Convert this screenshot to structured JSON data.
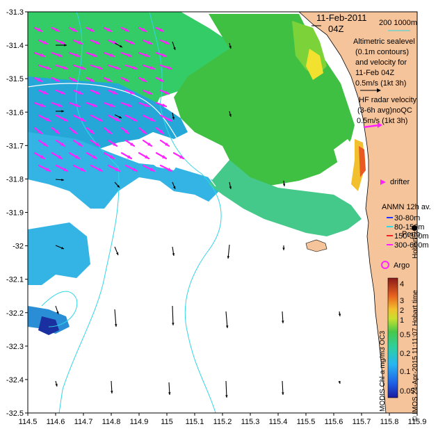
{
  "map": {
    "lon_ticks": [
      "114.5",
      "114.6",
      "114.7",
      "114.8",
      "114.9",
      "115",
      "115.1",
      "115.2",
      "115.3",
      "115.4",
      "115.5",
      "115.6",
      "115.7",
      "115.8",
      "115.9"
    ],
    "lat_ticks": [
      "-31.3",
      "-31.4",
      "-31.5",
      "-31.6",
      "-31.7",
      "-31.8",
      "-31.9",
      "-32",
      "-32.1",
      "-32.2",
      "-32.3",
      "-32.4",
      "-32.5"
    ],
    "lon_range": [
      114.5,
      115.9
    ],
    "lat_range": [
      -32.5,
      -31.3
    ]
  },
  "title": {
    "date": "11-Feb-2011",
    "time": "04Z",
    "scale_label": "200  1000m"
  },
  "legend": {
    "altimetric_lines": [
      "Altimetric sealevel",
      "(0.1m contours)",
      "and velocity for",
      "11-Feb 04Z",
      "0.5m/s (1kt 3h)"
    ],
    "hf_lines": [
      "HF radar velocity",
      "(3-6h avg)noQC",
      "0.5m/s (1kt 3h)"
    ],
    "drifter": "drifter",
    "anmn_title": "ANMN 12h av.",
    "anmn_items": [
      "30-80m",
      "80-150m",
      "150-300m",
      "300-600m"
    ],
    "argo": "Argo"
  },
  "places": {
    "perth": "Perth",
    "hobart": "Hobart"
  },
  "colorbar": {
    "ticks": [
      "4",
      "3",
      "2",
      "1",
      "0.5",
      "0.2",
      "0.1",
      "0.05"
    ],
    "label": "MODIS Chl-a mg/m3 OC3",
    "credit": "© IMOS 24-Apr-2015 11:11:07 Hobart time"
  },
  "colors": {
    "land": "#f6c49b",
    "contour": "#33d6e6",
    "hf_arrow": "#ff22ff",
    "arrow": "#000000",
    "anmn": [
      "#2233ff",
      "#33d6e6",
      "#ee2222",
      "#ff22ff"
    ]
  }
}
